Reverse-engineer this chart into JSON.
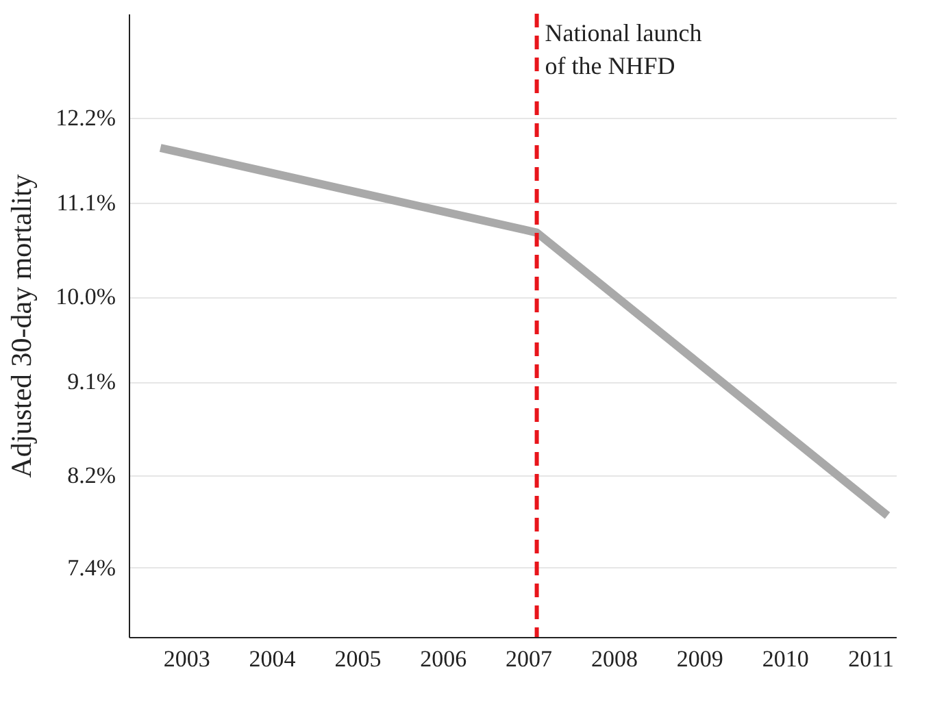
{
  "chart_data": {
    "type": "line",
    "ylabel": "Adjusted 30-day mortality",
    "x": [
      2002.7,
      2007.1,
      2011.2
    ],
    "series": [
      {
        "color": "#a9a9a9",
        "values": [
          11.8,
          10.74,
          7.84
        ]
      }
    ],
    "xlim": [
      2002.33,
      2011.3
    ],
    "xticks": [
      2003,
      2004,
      2005,
      2006,
      2007,
      2008,
      2009,
      2010,
      2011
    ],
    "ylim": [
      6.85,
      13.7
    ],
    "yticks": [
      {
        "value": 7.4,
        "label": "7.4%"
      },
      {
        "value": 8.2,
        "label": "8.2%"
      },
      {
        "value": 9.1,
        "label": "9.1%"
      },
      {
        "value": 10.0,
        "label": "10.0%"
      },
      {
        "value": 11.1,
        "label": "11.1%"
      },
      {
        "value": 12.2,
        "label": "12.2%"
      }
    ],
    "log": "y",
    "grid": "y",
    "marker": "none",
    "line_style": "solid",
    "ref_lines": [
      {
        "axis": "x",
        "value": 2007.1,
        "label": "National launch\nof the NHFD",
        "color": "#e8151b",
        "line_style": "dashed"
      }
    ]
  }
}
